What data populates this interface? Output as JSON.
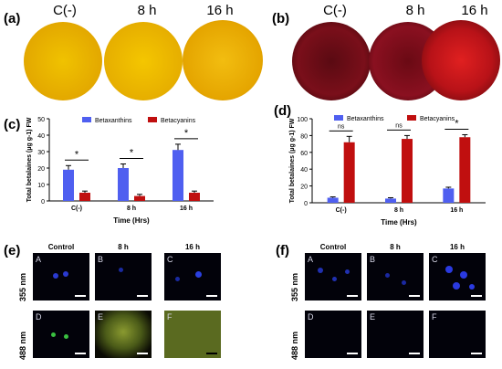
{
  "panels": {
    "a": {
      "letter": "(a)",
      "headers": [
        "C(-)",
        "8 h",
        "16 h"
      ]
    },
    "b": {
      "letter": "(b)",
      "headers": [
        "C(-)",
        "8 h",
        "16 h"
      ]
    },
    "c": {
      "letter": "(c)"
    },
    "d": {
      "letter": "(d)"
    },
    "e": {
      "letter": "(e)",
      "col_headers": [
        "Control",
        "8 h",
        "16 h"
      ],
      "row_headers": [
        "355 nm",
        "488 nm"
      ],
      "tiles": [
        "A",
        "B",
        "C",
        "D",
        "E",
        "F"
      ]
    },
    "f": {
      "letter": "(f)",
      "col_headers": [
        "Control",
        "8 h",
        "16 h"
      ],
      "row_headers": [
        "355 nm",
        "488 nm"
      ],
      "tiles": [
        "A",
        "B",
        "C",
        "D",
        "E",
        "F"
      ]
    }
  },
  "colors": {
    "betaxanthins": "#4f5ff0",
    "betacyanins": "#c00f0f",
    "dish_a": "#e8b200",
    "dish_b": "#7a0f1a"
  },
  "chart_data": [
    {
      "id": "c",
      "type": "bar",
      "categories": [
        "C(-)",
        "8 h",
        "16 h"
      ],
      "series": [
        {
          "name": "Betaxanthins",
          "values": [
            19,
            20,
            31
          ],
          "errors": [
            2.5,
            2.5,
            3.5
          ]
        },
        {
          "name": "Betacyanins",
          "values": [
            5,
            3,
            5
          ],
          "errors": [
            1,
            1,
            1
          ]
        }
      ],
      "significance": [
        "*",
        "*",
        "*"
      ],
      "xlabel": "Time (Hrs)",
      "ylabel": "Total betalaines (μg g-1) FW",
      "ylim": [
        0,
        50
      ],
      "yticks": [
        0,
        10,
        20,
        30,
        40,
        50
      ],
      "legend": "top"
    },
    {
      "id": "d",
      "type": "bar",
      "categories": [
        "C(-)",
        "8 h",
        "16 h"
      ],
      "series": [
        {
          "name": "Betaxanthins",
          "values": [
            6,
            5,
            17
          ],
          "errors": [
            1,
            1,
            1.5
          ]
        },
        {
          "name": "Betacyanins",
          "values": [
            72,
            76,
            78
          ],
          "errors": [
            7,
            4,
            3
          ]
        }
      ],
      "significance": [
        "ns",
        "ns",
        "*"
      ],
      "xlabel": "Time (Hrs)",
      "ylabel": "Total betalaines (μg g-1) FW",
      "ylim": [
        0,
        100
      ],
      "yticks": [
        0,
        20,
        40,
        60,
        80,
        100
      ],
      "legend": "top"
    }
  ]
}
